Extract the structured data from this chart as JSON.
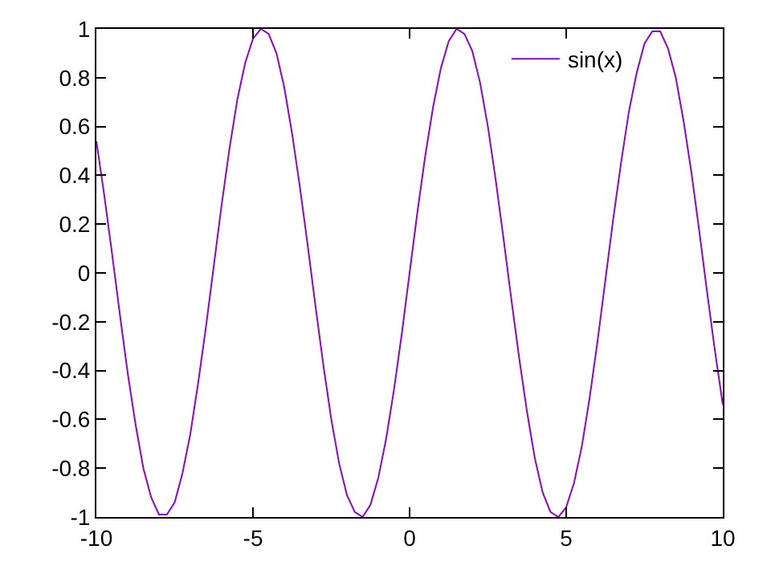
{
  "chart_data": {
    "type": "line",
    "x": [
      -10,
      -9.75,
      -9.5,
      -9.25,
      -9,
      -8.75,
      -8.5,
      -8.25,
      -8,
      -7.75,
      -7.5,
      -7.25,
      -7,
      -6.75,
      -6.5,
      -6.25,
      -6,
      -5.75,
      -5.5,
      -5.25,
      -5,
      -4.75,
      -4.5,
      -4.25,
      -4,
      -3.75,
      -3.5,
      -3.25,
      -3,
      -2.75,
      -2.5,
      -2.25,
      -2,
      -1.75,
      -1.5,
      -1.25,
      -1,
      -0.75,
      -0.5,
      -0.25,
      0,
      0.25,
      0.5,
      0.75,
      1,
      1.25,
      1.5,
      1.75,
      2,
      2.25,
      2.5,
      2.75,
      3,
      3.25,
      3.5,
      3.75,
      4,
      4.25,
      4.5,
      4.75,
      5,
      5.25,
      5.5,
      5.75,
      6,
      6.25,
      6.5,
      6.75,
      7,
      7.25,
      7.5,
      7.75,
      8,
      8.25,
      8.5,
      8.75,
      9,
      9.25,
      9.5,
      9.75,
      10
    ],
    "series": [
      {
        "name": "sin(x)",
        "color": "#9400d3",
        "values": [
          0.54,
          0.32,
          0.08,
          -0.17,
          -0.41,
          -0.62,
          -0.8,
          -0.92,
          -0.99,
          -0.99,
          -0.94,
          -0.82,
          -0.66,
          -0.45,
          -0.22,
          0.03,
          0.28,
          0.51,
          0.71,
          0.86,
          0.96,
          1,
          0.98,
          0.9,
          0.76,
          0.57,
          0.35,
          0.11,
          -0.14,
          -0.38,
          -0.6,
          -0.78,
          -0.91,
          -0.98,
          -1,
          -0.95,
          -0.84,
          -0.68,
          -0.48,
          -0.25,
          0,
          0.25,
          0.48,
          0.68,
          0.84,
          0.95,
          1,
          0.98,
          0.91,
          0.78,
          0.6,
          0.38,
          0.14,
          -0.11,
          -0.35,
          -0.57,
          -0.76,
          -0.9,
          -0.98,
          -1,
          -0.96,
          -0.86,
          -0.71,
          -0.51,
          -0.28,
          -0.03,
          0.22,
          0.45,
          0.66,
          0.82,
          0.94,
          0.99,
          0.99,
          0.92,
          0.8,
          0.62,
          0.41,
          0.17,
          -0.08,
          -0.32,
          -0.54
        ]
      }
    ],
    "xlim": [
      -10,
      10
    ],
    "xticks": [
      -10,
      -5,
      0,
      5,
      10
    ],
    "ylim": [
      -1,
      1
    ],
    "yticks": [
      -1,
      {
        "value": -0.8,
        "label": "-0.8"
      },
      {
        "value": -0.6,
        "label": "-0.6"
      },
      {
        "value": -0.4,
        "label": "-0.4"
      },
      {
        "value": -0.2,
        "label": "-0.2"
      },
      0,
      0.2,
      0.4,
      0.6,
      0.8,
      1
    ],
    "grid": false,
    "legend": "top right",
    "marker": "none",
    "line_style": "solid"
  }
}
